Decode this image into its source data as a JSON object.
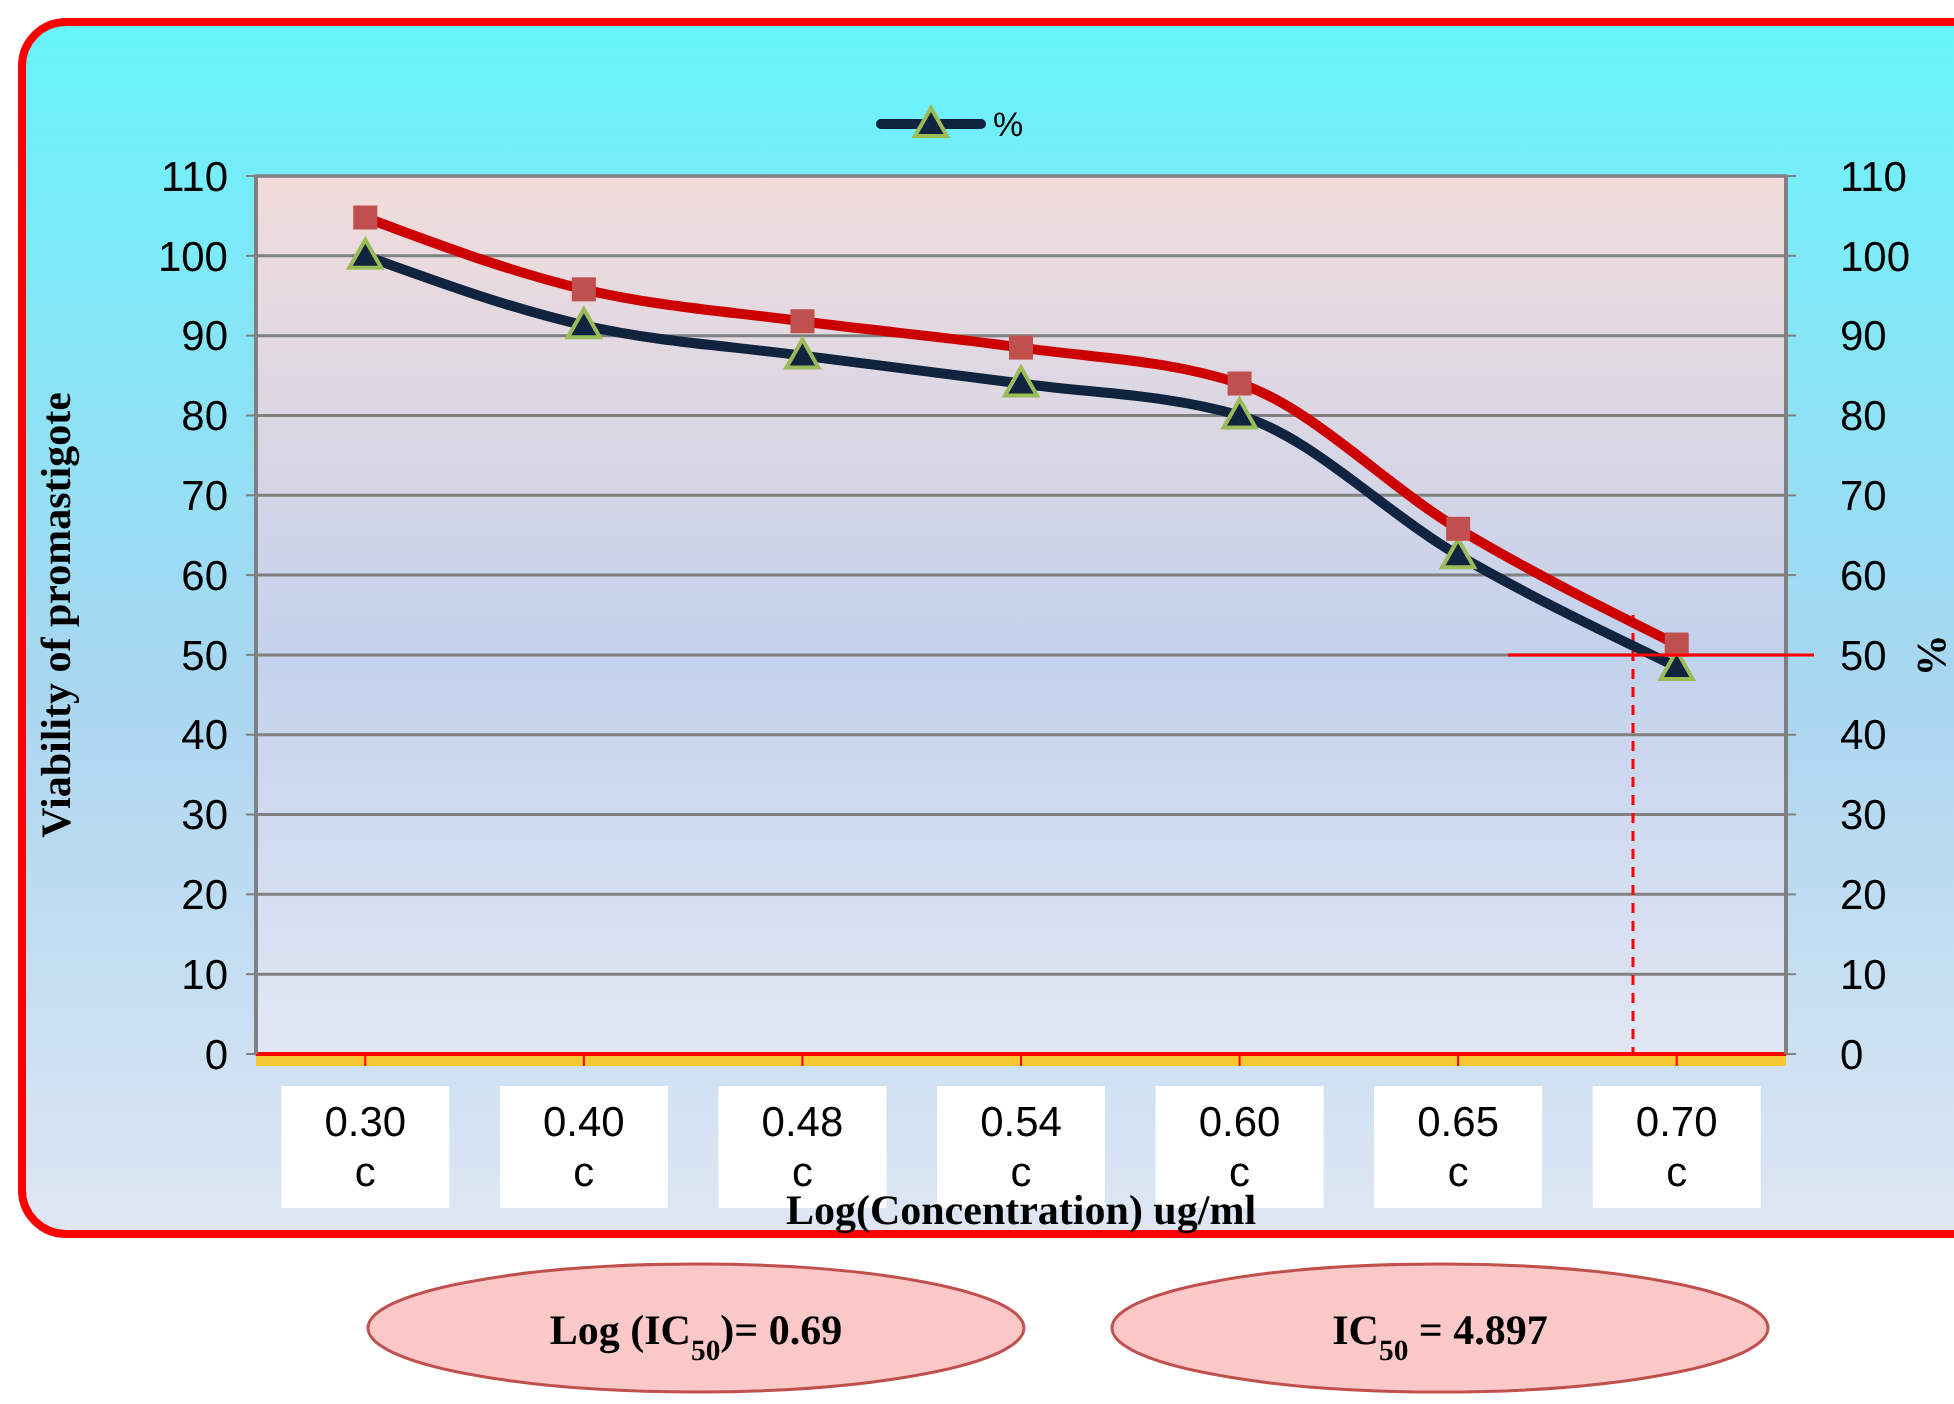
{
  "chart_data": {
    "type": "line",
    "xlabel": "Log(Concentration) ug/ml",
    "ylabel": "Viability of  promastigote",
    "y2label": "%",
    "categories": [
      "0.30 c",
      "0.40 c",
      "0.48 c",
      "0.54 c",
      "0.60 c",
      "0.65 c",
      "0.70 c"
    ],
    "series": [
      {
        "name": "%",
        "color": "#10233f",
        "marker": "triangle",
        "values": [
          100,
          91.3,
          87.5,
          84,
          80,
          62.5,
          48.5
        ]
      },
      {
        "color": "#cc0000",
        "marker": "square",
        "values": [
          104.8,
          95.8,
          91.8,
          88.5,
          84,
          65.8,
          51.3
        ]
      }
    ],
    "ylim": [
      0,
      110
    ],
    "yticks": [
      0,
      10,
      20,
      30,
      40,
      50,
      60,
      70,
      80,
      90,
      100,
      110
    ],
    "y2lim": [
      0,
      110
    ],
    "y2ticks": [
      0,
      10,
      20,
      30,
      40,
      50,
      60,
      70,
      80,
      90,
      100,
      110
    ],
    "grid": "y",
    "legend": "top",
    "line_style": "solid",
    "ref_lines": [
      {
        "axis": "y",
        "value": 50,
        "color": "#ff0000",
        "line_style": "solid"
      }
    ],
    "annotations": [
      "Log (IC$_{50}$)= 0.69",
      "IC$_{50}$ = 4.897"
    ]
  }
}
